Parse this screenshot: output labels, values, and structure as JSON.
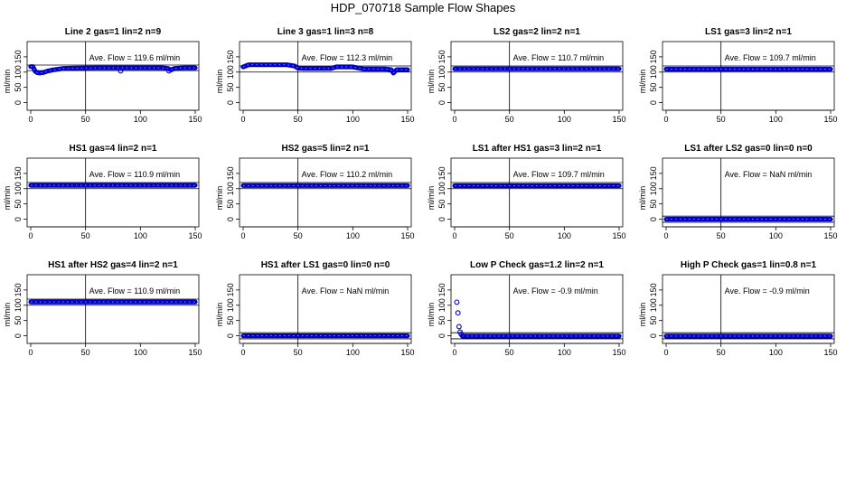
{
  "figure": {
    "title": "HDP_070718  Sample Flow Shapes"
  },
  "chart_data": [
    {
      "type": "scatter",
      "title": "Line 2 gas=1 lin=2 n=9",
      "ylabel": "ml/min",
      "annotation": "Ave. Flow =  119.6  ml/min",
      "xlim": [
        0,
        150
      ],
      "ylim": [
        -25,
        200
      ],
      "xticks": [
        0,
        50,
        100,
        150
      ],
      "yticks": [
        0,
        50,
        100,
        150
      ],
      "vline": 50,
      "hlines": [
        105,
        123
      ],
      "segments": [
        {
          "x": [
            0,
            2,
            4,
            6,
            8,
            10,
            12,
            15,
            20,
            30,
            40,
            60,
            80,
            100,
            120,
            125,
            128,
            131,
            140,
            150
          ],
          "y": [
            118,
            118,
            103,
            98,
            97,
            98,
            99,
            103,
            107,
            112,
            113,
            114,
            114,
            114,
            114,
            112,
            107,
            112,
            114,
            114
          ]
        }
      ],
      "points": [
        {
          "x": 82,
          "y": 104
        },
        {
          "x": 126,
          "y": 104
        }
      ]
    },
    {
      "type": "scatter",
      "title": "Line 3 gas=1 lin=3 n=8",
      "ylabel": "ml/min",
      "annotation": "Ave. Flow =  112.3  ml/min",
      "xlim": [
        0,
        150
      ],
      "ylim": [
        -25,
        200
      ],
      "xticks": [
        0,
        50,
        100,
        150
      ],
      "yticks": [
        0,
        50,
        100,
        150
      ],
      "vline": 50,
      "hlines": [
        100,
        120
      ],
      "segments": [
        {
          "x": [
            0,
            5,
            10,
            40,
            47,
            50,
            55,
            80,
            85,
            100,
            110,
            130,
            135,
            137,
            140,
            150
          ],
          "y": [
            117,
            124,
            124,
            124,
            120,
            113,
            112,
            112,
            117,
            117,
            110,
            110,
            108,
            97,
            108,
            108
          ]
        }
      ],
      "points": []
    },
    {
      "type": "scatter",
      "title": "LS2 gas=2 lin=2 n=1",
      "ylabel": "ml/min",
      "annotation": "Ave. Flow =  110.7  ml/min",
      "xlim": [
        0,
        150
      ],
      "ylim": [
        -25,
        200
      ],
      "xticks": [
        0,
        50,
        100,
        150
      ],
      "yticks": [
        0,
        50,
        100,
        150
      ],
      "vline": 50,
      "hlines": [
        100,
        120
      ],
      "segments": [
        {
          "x": [
            0,
            150
          ],
          "y": [
            110.7,
            110.7
          ]
        }
      ],
      "points": []
    },
    {
      "type": "scatter",
      "title": "LS1 gas=3 lin=2 n=1",
      "ylabel": "ml/min",
      "annotation": "Ave. Flow =  109.7  ml/min",
      "xlim": [
        0,
        150
      ],
      "ylim": [
        -25,
        200
      ],
      "xticks": [
        0,
        50,
        100,
        150
      ],
      "yticks": [
        0,
        50,
        100,
        150
      ],
      "vline": 50,
      "hlines": [
        100,
        120
      ],
      "segments": [
        {
          "x": [
            0,
            150
          ],
          "y": [
            109.7,
            109.7
          ]
        }
      ],
      "points": []
    },
    {
      "type": "scatter",
      "title": "HS1 gas=4 lin=2 n=1",
      "ylabel": "ml/min",
      "annotation": "Ave. Flow =  110.9  ml/min",
      "xlim": [
        0,
        150
      ],
      "ylim": [
        -25,
        200
      ],
      "xticks": [
        0,
        50,
        100,
        150
      ],
      "yticks": [
        0,
        50,
        100,
        150
      ],
      "vline": 50,
      "hlines": [
        100,
        120
      ],
      "segments": [
        {
          "x": [
            0,
            150
          ],
          "y": [
            110.9,
            110.9
          ]
        }
      ],
      "points": []
    },
    {
      "type": "scatter",
      "title": "HS2 gas=5 lin=2 n=1",
      "ylabel": "ml/min",
      "annotation": "Ave. Flow =  110.2  ml/min",
      "xlim": [
        0,
        150
      ],
      "ylim": [
        -25,
        200
      ],
      "xticks": [
        0,
        50,
        100,
        150
      ],
      "yticks": [
        0,
        50,
        100,
        150
      ],
      "vline": 50,
      "hlines": [
        100,
        120
      ],
      "segments": [
        {
          "x": [
            0,
            150
          ],
          "y": [
            110.2,
            110.2
          ]
        }
      ],
      "points": []
    },
    {
      "type": "scatter",
      "title": "LS1 after HS1 gas=3 lin=2 n=1",
      "ylabel": "ml/min",
      "annotation": "Ave. Flow =  109.7  ml/min",
      "xlim": [
        0,
        150
      ],
      "ylim": [
        -25,
        200
      ],
      "xticks": [
        0,
        50,
        100,
        150
      ],
      "yticks": [
        0,
        50,
        100,
        150
      ],
      "vline": 50,
      "hlines": [
        100,
        120
      ],
      "segments": [
        {
          "x": [
            0,
            150
          ],
          "y": [
            109.7,
            109.7
          ]
        }
      ],
      "points": []
    },
    {
      "type": "scatter",
      "title": "LS1 after LS2 gas=0 lin=0 n=0",
      "ylabel": "ml/min",
      "annotation": "Ave. Flow =  NaN  ml/min",
      "xlim": [
        0,
        150
      ],
      "ylim": [
        -25,
        200
      ],
      "xticks": [
        0,
        50,
        100,
        150
      ],
      "yticks": [
        0,
        50,
        100,
        150
      ],
      "vline": 50,
      "hlines": [
        -10,
        10
      ],
      "segments": [
        {
          "x": [
            0,
            150
          ],
          "y": [
            0,
            0
          ]
        }
      ],
      "points": []
    },
    {
      "type": "scatter",
      "title": "HS1 after HS2 gas=4 lin=2 n=1",
      "ylabel": "ml/min",
      "annotation": "Ave. Flow =  110.9  ml/min",
      "xlim": [
        0,
        150
      ],
      "ylim": [
        -25,
        200
      ],
      "xticks": [
        0,
        50,
        100,
        150
      ],
      "yticks": [
        0,
        50,
        100,
        150
      ],
      "vline": 50,
      "hlines": [
        100,
        120
      ],
      "segments": [
        {
          "x": [
            0,
            150
          ],
          "y": [
            110.9,
            110.9
          ]
        }
      ],
      "points": []
    },
    {
      "type": "scatter",
      "title": "HS1 after LS1 gas=0 lin=0 n=0",
      "ylabel": "ml/min",
      "annotation": "Ave. Flow =  NaN  ml/min",
      "xlim": [
        0,
        150
      ],
      "ylim": [
        -25,
        200
      ],
      "xticks": [
        0,
        50,
        100,
        150
      ],
      "yticks": [
        0,
        50,
        100,
        150
      ],
      "vline": 50,
      "hlines": [
        -10,
        10
      ],
      "segments": [
        {
          "x": [
            0,
            150
          ],
          "y": [
            0,
            0
          ]
        }
      ],
      "points": []
    },
    {
      "type": "scatter",
      "title": "Low P Check gas=1.2 lin=2 n=1",
      "ylabel": "ml/min",
      "annotation": "Ave. Flow =  -0.9  ml/min",
      "xlim": [
        0,
        150
      ],
      "ylim": [
        -25,
        200
      ],
      "xticks": [
        0,
        50,
        100,
        150
      ],
      "yticks": [
        0,
        50,
        100,
        150
      ],
      "vline": 50,
      "hlines": [
        -10,
        10
      ],
      "segments": [
        {
          "x": [
            7,
            150
          ],
          "y": [
            -0.9,
            -0.9
          ]
        }
      ],
      "points": [
        {
          "x": 2,
          "y": 110
        },
        {
          "x": 3,
          "y": 75
        },
        {
          "x": 4,
          "y": 30
        },
        {
          "x": 5,
          "y": 12
        },
        {
          "x": 6,
          "y": 5
        }
      ]
    },
    {
      "type": "scatter",
      "title": "High P Check gas=1 lin=0.8 n=1",
      "ylabel": "ml/min",
      "annotation": "Ave. Flow =  -0.9  ml/min",
      "xlim": [
        0,
        150
      ],
      "ylim": [
        -25,
        200
      ],
      "xticks": [
        0,
        50,
        100,
        150
      ],
      "yticks": [
        0,
        50,
        100,
        150
      ],
      "vline": 50,
      "hlines": [
        -10,
        10
      ],
      "segments": [
        {
          "x": [
            0,
            150
          ],
          "y": [
            -0.9,
            -0.9
          ]
        }
      ],
      "points": []
    }
  ],
  "colors": {
    "points": "#0000cc",
    "axis": "#000000",
    "reference": "#000000"
  }
}
